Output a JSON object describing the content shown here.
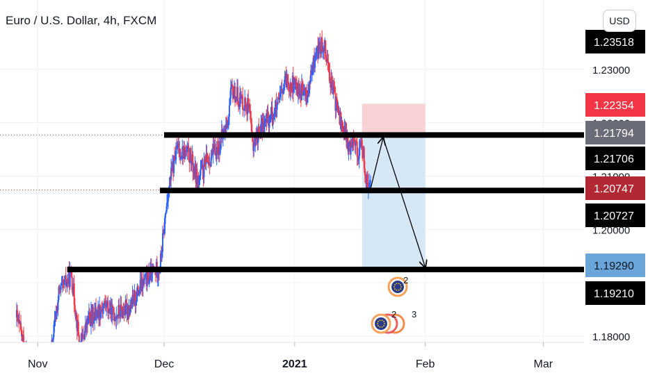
{
  "title": "Euro / U.S. Dollar, 4h, FXCM",
  "currency_button": "USD",
  "colors": {
    "up": "#2962ff",
    "down": "#f23645",
    "line": "#000000",
    "risk_zone": "#f7c9cc",
    "reward_zone": "#cfe3f4",
    "grid": "#eef0f4"
  },
  "chart_data": {
    "type": "candlestick",
    "instrument": "Euro / U.S. Dollar",
    "timeframe": "4h",
    "source": "FXCM",
    "x_ticks": [
      "Nov",
      "Dec",
      "2021",
      "Feb",
      "Mar"
    ],
    "y_ticks": [
      "1.18000",
      "1.20000",
      "1.21000",
      "1.22000",
      "1.23000"
    ],
    "ylim": [
      1.1755,
      1.2385
    ],
    "price_labels": [
      {
        "value": "1.23518",
        "style": "dark"
      },
      {
        "value": "1.22354",
        "style": "red"
      },
      {
        "value": "1.21794",
        "style": "grey"
      },
      {
        "value": "1.21706",
        "style": "dark"
      },
      {
        "value": "1.20747",
        "style": "darkred"
      },
      {
        "value": "1.20727",
        "style": "dark"
      },
      {
        "value": "1.19290",
        "style": "blue"
      },
      {
        "value": "1.19210",
        "style": "dark"
      }
    ],
    "horizontal_levels": [
      {
        "price": 1.23518,
        "from_date": "2021-12-24"
      },
      {
        "price": 1.2177,
        "from_date": "2020-12-01"
      },
      {
        "price": 1.2073,
        "from_date": "2020-11-30"
      },
      {
        "price": 1.1925,
        "from_date": "2020-11-08"
      }
    ],
    "position": {
      "type": "short",
      "entry": 1.2177,
      "stop": 1.22354,
      "target": 1.1925,
      "from_date": "2021-01-17",
      "to_date": "2021-02-01"
    },
    "projection_path": [
      {
        "date": "2021-01-19",
        "price": 1.2076
      },
      {
        "date": "2021-01-22",
        "price": 1.2172
      },
      {
        "date": "2021-02-01",
        "price": 1.1929
      }
    ],
    "price_series_close": [
      {
        "date": "2020-10-27",
        "close": 1.1835
      },
      {
        "date": "2020-10-30",
        "close": 1.175
      },
      {
        "date": "2020-11-04",
        "close": 1.176
      },
      {
        "date": "2020-11-06",
        "close": 1.188
      },
      {
        "date": "2020-11-09",
        "close": 1.1915
      },
      {
        "date": "2020-11-11",
        "close": 1.178
      },
      {
        "date": "2020-11-13",
        "close": 1.183
      },
      {
        "date": "2020-11-17",
        "close": 1.186
      },
      {
        "date": "2020-11-19",
        "close": 1.184
      },
      {
        "date": "2020-11-23",
        "close": 1.1855
      },
      {
        "date": "2020-11-26",
        "close": 1.19
      },
      {
        "date": "2020-11-30",
        "close": 1.193
      },
      {
        "date": "2020-12-02",
        "close": 1.2075
      },
      {
        "date": "2020-12-04",
        "close": 1.215
      },
      {
        "date": "2020-12-07",
        "close": 1.214
      },
      {
        "date": "2020-12-09",
        "close": 1.209
      },
      {
        "date": "2020-12-11",
        "close": 1.2125
      },
      {
        "date": "2020-12-14",
        "close": 1.2155
      },
      {
        "date": "2020-12-16",
        "close": 1.22
      },
      {
        "date": "2020-12-17",
        "close": 1.226
      },
      {
        "date": "2020-12-21",
        "close": 1.223
      },
      {
        "date": "2020-12-22",
        "close": 1.216
      },
      {
        "date": "2020-12-24",
        "close": 1.219
      },
      {
        "date": "2020-12-28",
        "close": 1.223
      },
      {
        "date": "2020-12-30",
        "close": 1.228
      },
      {
        "date": "2021-01-04",
        "close": 1.225
      },
      {
        "date": "2021-01-06",
        "close": 1.233
      },
      {
        "date": "2021-01-08",
        "close": 1.235
      },
      {
        "date": "2021-01-10",
        "close": 1.226
      },
      {
        "date": "2021-01-12",
        "close": 1.22
      },
      {
        "date": "2021-01-14",
        "close": 1.215
      },
      {
        "date": "2021-01-15",
        "close": 1.218
      },
      {
        "date": "2021-01-16",
        "close": 1.214
      },
      {
        "date": "2021-01-17",
        "close": 1.216
      },
      {
        "date": "2021-01-18",
        "close": 1.209
      },
      {
        "date": "2021-01-19",
        "close": 1.2075
      }
    ]
  },
  "event_markers": [
    {
      "label": "2"
    },
    {
      "label": "2"
    },
    {
      "label": "3"
    }
  ]
}
